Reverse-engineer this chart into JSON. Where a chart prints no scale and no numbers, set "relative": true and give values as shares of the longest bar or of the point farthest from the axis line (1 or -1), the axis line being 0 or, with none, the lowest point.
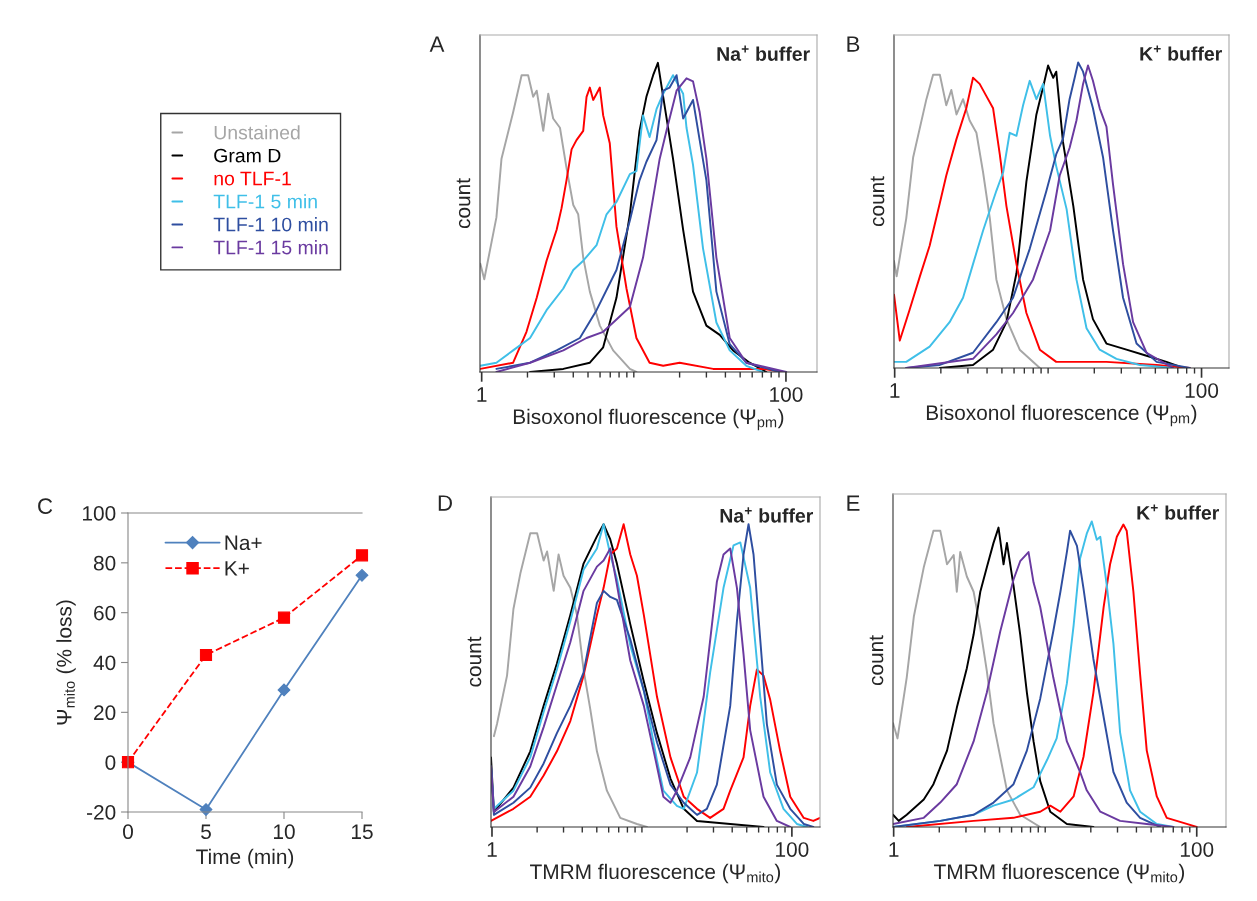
{
  "chart_data": [
    {
      "type": "line",
      "relative": true,
      "log": "x",
      "xlim": [
        0.975,
        160
      ],
      "xticks": [
        1,
        100
      ],
      "xlabel": "Bisoxonol fluorescence (Ψ$_{pm}$)",
      "ylabel": "count",
      "legend": "left",
      "annotations": [
        "A",
        "Na$^{+}$ buffer"
      ],
      "series": [
        {
          "name": "Unstained",
          "color": "#a6a6a6",
          "x": [
            0.98,
            1.04,
            1.25,
            1.35,
            1.61,
            1.83,
            2.02,
            2.18,
            2.3,
            2.54,
            2.74,
            2.95,
            3.27,
            3.61,
            4.0,
            4.31,
            4.65,
            5.14,
            5.98,
            7.31,
            9.42,
            10.4
          ],
          "values": [
            0.35,
            0.3,
            0.5,
            0.69,
            0.84,
            0.96,
            0.96,
            0.89,
            0.91,
            0.78,
            0.9,
            0.82,
            0.79,
            0.66,
            0.54,
            0.51,
            0.37,
            0.26,
            0.15,
            0.07,
            0.01,
            0
          ]
        },
        {
          "name": "Gram D",
          "color": "#000000",
          "x": [
            2.08,
            3.44,
            5.14,
            6.29,
            7.69,
            9.42,
            10.9,
            12.1,
            13.4,
            14.4,
            15.6,
            18.1,
            21.1,
            24.5,
            30.0,
            36.7,
            44.9,
            57.7,
            74.3
          ],
          "values": [
            0,
            0.01,
            0.03,
            0.08,
            0.24,
            0.51,
            0.78,
            0.89,
            0.96,
            1.0,
            0.89,
            0.69,
            0.46,
            0.26,
            0.15,
            0.12,
            0.07,
            0.03,
            0
          ]
        },
        {
          "name": "no TLF-1",
          "color": "#ff0000",
          "x": [
            0.98,
            1.61,
            1.97,
            2.3,
            2.67,
            3.11,
            3.35,
            3.61,
            3.9,
            4.2,
            4.65,
            4.89,
            5.14,
            5.41,
            5.69,
            5.98,
            6.29,
            6.95,
            7.69,
            8.95,
            10.4,
            12.7,
            15.6,
            20.0,
            33.2,
            70.6,
            95.5
          ],
          "values": [
            0.01,
            0.03,
            0.13,
            0.24,
            0.36,
            0.46,
            0.53,
            0.62,
            0.72,
            0.75,
            0.78,
            0.89,
            0.92,
            0.88,
            0.9,
            0.92,
            0.83,
            0.74,
            0.47,
            0.27,
            0.11,
            0.03,
            0.02,
            0.03,
            0.01,
            0.01,
            0
          ]
        },
        {
          "name": "TLF-1 5 min",
          "color": "#3fbfe8",
          "x": [
            0.98,
            1.25,
            1.61,
            2.08,
            2.67,
            3.44,
            4.0,
            4.65,
            5.69,
            6.62,
            7.69,
            9.42,
            10.4,
            11.5,
            12.7,
            14.1,
            15.6,
            18.1,
            21.1,
            22.2,
            24.5,
            28.5,
            34.9,
            42.7,
            54.9,
            70.6
          ],
          "values": [
            0.02,
            0.03,
            0.07,
            0.11,
            0.2,
            0.27,
            0.33,
            0.36,
            0.41,
            0.51,
            0.55,
            0.64,
            0.65,
            0.83,
            0.76,
            0.85,
            0.9,
            0.96,
            0.9,
            0.79,
            0.67,
            0.4,
            0.16,
            0.07,
            0.02,
            0
          ]
        },
        {
          "name": "TLF-1 10 min",
          "color": "#2e4ea0",
          "x": [
            1.25,
            2.08,
            3.11,
            4.42,
            5.69,
            7.69,
            9.42,
            10.9,
            12.1,
            14.1,
            15.6,
            17.2,
            19.1,
            21.1,
            24.5,
            27.1,
            30.0,
            34.9,
            42.7,
            54.9,
            90.8
          ],
          "values": [
            0.01,
            0.03,
            0.07,
            0.11,
            0.2,
            0.33,
            0.49,
            0.62,
            0.68,
            0.75,
            0.91,
            0.92,
            0.96,
            0.82,
            0.88,
            0.75,
            0.62,
            0.26,
            0.09,
            0.03,
            0
          ]
        },
        {
          "name": "TLF-1 15 min",
          "color": "#6a3aa0",
          "x": [
            1.25,
            2.08,
            3.44,
            4.89,
            6.29,
            7.69,
            9.42,
            11.5,
            14.8,
            16.4,
            19.1,
            22.2,
            24.5,
            27.1,
            30.0,
            34.9,
            42.7,
            54.9,
            100.5
          ],
          "values": [
            0,
            0.03,
            0.07,
            0.11,
            0.13,
            0.17,
            0.21,
            0.37,
            0.69,
            0.78,
            0.91,
            0.95,
            0.94,
            0.84,
            0.69,
            0.37,
            0.11,
            0.03,
            0
          ]
        }
      ]
    },
    {
      "type": "line",
      "relative": true,
      "log": "x",
      "xlim": [
        0.99,
        151
      ],
      "xticks": [
        1,
        100
      ],
      "xlabel": "Bisoxonol fluorescence (Ψ$_{pm}$)",
      "ylabel": "count",
      "annotations": [
        "B",
        "K$^{+}$ buffer"
      ],
      "series": [
        {
          "color": "#a6a6a6",
          "x": [
            0.99,
            1.03,
            1.19,
            1.32,
            1.61,
            1.78,
            1.97,
            2.17,
            2.34,
            2.53,
            2.79,
            3.08,
            3.41,
            3.77,
            4.17,
            4.6,
            5.35,
            6.53,
            8.83
          ],
          "values": [
            0.35,
            0.3,
            0.49,
            0.69,
            0.88,
            0.96,
            0.96,
            0.86,
            0.91,
            0.83,
            0.88,
            0.81,
            0.77,
            0.64,
            0.49,
            0.29,
            0.16,
            0.06,
            0
          ]
        },
        {
          "color": "#000000",
          "x": [
            1.97,
            3.24,
            4.38,
            5.35,
            6.22,
            7.22,
            8.39,
            9.28,
            10.0,
            10.8,
            11.3,
            12.5,
            14.6,
            16.9,
            19.6,
            24.0,
            32.4,
            43.8,
            59.1,
            75.9
          ],
          "values": [
            0,
            0.01,
            0.06,
            0.15,
            0.31,
            0.61,
            0.83,
            0.92,
            0.99,
            0.95,
            0.97,
            0.74,
            0.53,
            0.29,
            0.16,
            0.08,
            0.06,
            0.04,
            0.02,
            0
          ]
        },
        {
          "color": "#ff0000",
          "x": [
            0.99,
            1.08,
            1.25,
            1.46,
            1.69,
            1.97,
            2.17,
            2.53,
            2.93,
            3.24,
            3.58,
            3.96,
            4.38,
            4.84,
            5.35,
            6.22,
            7.22,
            8.83,
            11.3,
            24.0,
            50.9,
            83.9
          ],
          "values": [
            0.24,
            0.09,
            0.19,
            0.3,
            0.4,
            0.54,
            0.63,
            0.75,
            0.85,
            0.95,
            0.93,
            0.89,
            0.85,
            0.7,
            0.53,
            0.34,
            0.18,
            0.06,
            0.02,
            0.02,
            0.01,
            0
          ]
        },
        {
          "color": "#3fbfe8",
          "x": [
            0.99,
            1.19,
            1.69,
            2.28,
            2.79,
            3.24,
            3.77,
            4.6,
            5.09,
            5.62,
            6.22,
            6.87,
            7.59,
            8.39,
            9.28,
            10.3,
            11.3,
            13.2,
            15.3,
            17.8,
            21.7,
            27.9,
            39.6,
            65.3
          ],
          "values": [
            0.02,
            0.02,
            0.07,
            0.15,
            0.23,
            0.34,
            0.45,
            0.58,
            0.64,
            0.77,
            0.76,
            0.86,
            0.94,
            0.88,
            0.93,
            0.76,
            0.66,
            0.52,
            0.29,
            0.13,
            0.06,
            0.03,
            0.01,
            0
          ]
        },
        {
          "color": "#2e4ea0",
          "x": [
            1.19,
            1.97,
            3.24,
            4.6,
            5.91,
            7.59,
            9.75,
            11.3,
            12.5,
            13.8,
            14.9,
            15.7,
            16.9,
            19.6,
            22.8,
            26.5,
            30.8,
            37.7,
            50.9,
            83.9
          ],
          "values": [
            0,
            0.01,
            0.05,
            0.15,
            0.23,
            0.39,
            0.58,
            0.7,
            0.75,
            0.88,
            0.95,
            1.0,
            0.97,
            0.85,
            0.69,
            0.45,
            0.23,
            0.08,
            0.02,
            0
          ]
        },
        {
          "color": "#6a3aa0",
          "x": [
            1.19,
            3.24,
            4.6,
            5.91,
            7.98,
            10.3,
            11.9,
            13.8,
            15.3,
            16.9,
            18.2,
            19.6,
            21.7,
            24.0,
            26.5,
            30.8,
            35.8,
            43.8,
            65.3
          ],
          "values": [
            0,
            0.03,
            0.11,
            0.18,
            0.29,
            0.45,
            0.63,
            0.72,
            0.81,
            0.93,
            0.99,
            0.94,
            0.85,
            0.79,
            0.6,
            0.34,
            0.15,
            0.05,
            0
          ]
        }
      ]
    },
    {
      "type": "line",
      "x": [
        0,
        5,
        10,
        15
      ],
      "xlim": [
        0,
        15
      ],
      "xticks": [
        0,
        5,
        10,
        15
      ],
      "ylim": [
        -20,
        100
      ],
      "yticks": [
        -20,
        0,
        20,
        40,
        60,
        80,
        100
      ],
      "xlabel": "Time (min)",
      "ylabel": "Ψ$_{mito}$ (% loss)",
      "legend": "top left",
      "annotations": [
        "C"
      ],
      "series": [
        {
          "name": "Na+",
          "color": "#4f81bd",
          "marker": "diamond",
          "line_style": "solid",
          "values": [
            0,
            -19,
            29,
            75
          ]
        },
        {
          "name": "K+",
          "color": "#ff0000",
          "marker": "square",
          "line_style": "dashed",
          "values": [
            0,
            43,
            58,
            83
          ]
        }
      ]
    },
    {
      "type": "line",
      "relative": true,
      "log": "x",
      "xlim": [
        0.985,
        154
      ],
      "xticks": [
        1,
        100
      ],
      "xlabel": "TMRM fluorescence (Ψ$_{mito}$)",
      "ylabel": "count",
      "annotations": [
        "D",
        "Na$^{+}$ buffer"
      ],
      "series": [
        {
          "color": "#a6a6a6",
          "x": [
            1.03,
            1.08,
            1.26,
            1.39,
            1.55,
            1.8,
            2.0,
            2.21,
            2.33,
            2.58,
            2.78,
            3.0,
            3.33,
            3.69,
            4.08,
            4.52,
            5.01,
            5.84,
            7.17,
            9.26,
            10.8
          ],
          "values": [
            0.3,
            0.34,
            0.5,
            0.72,
            0.84,
            0.97,
            0.97,
            0.88,
            0.91,
            0.78,
            0.9,
            0.83,
            0.79,
            0.7,
            0.52,
            0.39,
            0.25,
            0.12,
            0.03,
            0.01,
            0
          ]
        },
        {
          "color": "#000000",
          "x": [
            0.985,
            1.03,
            1.39,
            1.8,
            2.21,
            2.71,
            3.33,
            4.08,
            5.01,
            5.55,
            6.15,
            6.81,
            8.36,
            10.3,
            12.6,
            15.5,
            19.0,
            23.3,
            38.8,
            64.7
          ],
          "values": [
            0.23,
            0.05,
            0.13,
            0.25,
            0.4,
            0.54,
            0.7,
            0.87,
            0.96,
            1.0,
            0.95,
            0.87,
            0.67,
            0.48,
            0.31,
            0.16,
            0.06,
            0.02,
            0.01,
            0
          ]
        },
        {
          "color": "#ff0000",
          "x": [
            0.985,
            1.39,
            1.8,
            2.21,
            2.71,
            3.33,
            4.08,
            5.01,
            5.55,
            6.15,
            6.81,
            7.55,
            8.36,
            9.26,
            10.3,
            12.6,
            15.5,
            19.0,
            23.3,
            28.5,
            35.0,
            38.8,
            47.6,
            52.7,
            58.4,
            64.7,
            71.7,
            83.6,
            97.5,
            120,
            139,
            154
          ],
          "values": [
            0.02,
            0.06,
            0.1,
            0.17,
            0.25,
            0.35,
            0.5,
            0.7,
            0.79,
            0.9,
            0.92,
            1.0,
            0.9,
            0.83,
            0.7,
            0.43,
            0.23,
            0.1,
            0.06,
            0.03,
            0.06,
            0.12,
            0.23,
            0.4,
            0.52,
            0.5,
            0.42,
            0.25,
            0.1,
            0.03,
            0.02,
            0.03
          ]
        },
        {
          "color": "#3fbfe8",
          "x": [
            0.985,
            1.03,
            1.39,
            1.8,
            2.21,
            2.71,
            3.33,
            4.08,
            5.01,
            5.55,
            6.15,
            6.81,
            8.36,
            10.3,
            12.6,
            13.9,
            17.1,
            19.0,
            23.3,
            28.5,
            35.0,
            40.8,
            45.3,
            52.7,
            61.5,
            71.7,
            87.9,
            108,
            126
          ],
          "values": [
            0.2,
            0.06,
            0.12,
            0.23,
            0.38,
            0.52,
            0.68,
            0.85,
            0.92,
            1.0,
            0.9,
            0.82,
            0.6,
            0.45,
            0.22,
            0.12,
            0.07,
            0.06,
            0.18,
            0.51,
            0.79,
            0.93,
            0.94,
            0.79,
            0.43,
            0.18,
            0.06,
            0.01,
            0
          ]
        },
        {
          "color": "#2e4ea0",
          "x": [
            0.985,
            1.03,
            1.39,
            1.8,
            2.21,
            2.71,
            3.33,
            4.08,
            5.01,
            5.55,
            6.15,
            6.81,
            8.36,
            10.3,
            12.6,
            15.5,
            19.0,
            21.0,
            23.3,
            27.1,
            31.6,
            38.8,
            43.0,
            47.6,
            51.4,
            55.5,
            61.5,
            68.1,
            79.4,
            97.5,
            120,
            139
          ],
          "values": [
            0.2,
            0.04,
            0.08,
            0.13,
            0.21,
            0.31,
            0.4,
            0.51,
            0.74,
            0.78,
            0.76,
            0.75,
            0.62,
            0.45,
            0.28,
            0.14,
            0.08,
            0.06,
            0.04,
            0.06,
            0.14,
            0.4,
            0.68,
            0.9,
            1.0,
            0.9,
            0.62,
            0.34,
            0.14,
            0.06,
            0.01,
            0
          ]
        },
        {
          "color": "#6a3aa0",
          "x": [
            0.985,
            1.03,
            1.39,
            1.8,
            2.21,
            2.71,
            3.33,
            4.08,
            5.01,
            5.55,
            6.15,
            6.81,
            8.36,
            10.3,
            12.6,
            13.9,
            15.5,
            17.1,
            21.0,
            25.8,
            31.6,
            35.0,
            38.8,
            43.0,
            47.6,
            52.7,
            64.7,
            79.4,
            97.5
          ],
          "values": [
            0.2,
            0.05,
            0.1,
            0.2,
            0.33,
            0.47,
            0.61,
            0.78,
            0.86,
            0.88,
            0.92,
            0.8,
            0.55,
            0.4,
            0.2,
            0.1,
            0.08,
            0.12,
            0.23,
            0.43,
            0.81,
            0.9,
            0.92,
            0.79,
            0.57,
            0.32,
            0.1,
            0.02,
            0
          ]
        }
      ]
    },
    {
      "type": "line",
      "relative": true,
      "log": "x",
      "xlim": [
        0.99,
        156
      ],
      "xticks": [
        1,
        100
      ],
      "xlabel": "TMRM fluorescence (Ψ$_{mito}$)",
      "ylabel": "count",
      "annotations": [
        "E",
        "K$^{+}$ buffer"
      ],
      "series": [
        {
          "color": "#a6a6a6",
          "x": [
            0.99,
            1.06,
            1.22,
            1.36,
            1.58,
            1.83,
            2.03,
            2.25,
            2.49,
            2.61,
            2.75,
            3.04,
            3.37,
            3.73,
            4.12,
            4.56,
            5.05,
            5.59,
            6.84,
            9.27
          ],
          "values": [
            0.34,
            0.29,
            0.49,
            0.69,
            0.85,
            0.97,
            0.97,
            0.86,
            0.89,
            0.77,
            0.9,
            0.82,
            0.77,
            0.65,
            0.51,
            0.34,
            0.23,
            0.12,
            0.04,
            0
          ]
        },
        {
          "color": "#000000",
          "x": [
            0.99,
            1.08,
            1.22,
            1.58,
            1.83,
            2.25,
            2.61,
            3.04,
            3.37,
            3.73,
            4.12,
            4.56,
            4.92,
            5.31,
            5.59,
            6.18,
            6.84,
            7.57,
            8.38,
            9.27,
            10.8,
            13.9,
            20.8
          ],
          "values": [
            0.04,
            0.02,
            0.04,
            0.09,
            0.14,
            0.25,
            0.39,
            0.52,
            0.63,
            0.77,
            0.85,
            0.93,
            0.98,
            0.86,
            0.93,
            0.79,
            0.63,
            0.44,
            0.28,
            0.15,
            0.05,
            0.01,
            0
          ]
        },
        {
          "color": "#ff0000",
          "x": [
            1.22,
            3.37,
            6.18,
            9.27,
            10.8,
            12.6,
            15.4,
            17.9,
            20.8,
            24.3,
            26.8,
            29.7,
            32.8,
            34.5,
            38.2,
            42.3,
            46.8,
            54.5,
            63.4,
            85.9,
            100
          ],
          "values": [
            0,
            0.02,
            0.03,
            0.05,
            0.07,
            0.05,
            0.1,
            0.23,
            0.44,
            0.72,
            0.86,
            0.95,
            0.99,
            0.97,
            0.77,
            0.5,
            0.25,
            0.1,
            0.03,
            0.01,
            0
          ]
        },
        {
          "color": "#3fbfe8",
          "x": [
            0.99,
            2.03,
            3.37,
            4.56,
            6.18,
            8.38,
            10.3,
            11.9,
            13.9,
            15.4,
            17.0,
            18.8,
            20.3,
            21.9,
            23.1,
            25.5,
            28.2,
            31.2,
            36.3,
            42.3,
            54.5,
            70.2
          ],
          "values": [
            0,
            0.02,
            0.04,
            0.07,
            0.09,
            0.13,
            0.22,
            0.29,
            0.47,
            0.66,
            0.88,
            0.96,
            1.0,
            0.94,
            0.95,
            0.79,
            0.6,
            0.31,
            0.12,
            0.05,
            0.01,
            0
          ]
        },
        {
          "color": "#2e4ea0",
          "x": [
            0.99,
            2.03,
            3.37,
            4.56,
            6.18,
            7.57,
            9.27,
            11.3,
            12.6,
            13.9,
            14.6,
            16.2,
            17.9,
            20.8,
            24.3,
            28.2,
            34.5,
            42.3,
            57.3
          ],
          "values": [
            0,
            0.02,
            0.04,
            0.08,
            0.14,
            0.25,
            0.42,
            0.64,
            0.77,
            0.9,
            0.97,
            0.92,
            0.78,
            0.55,
            0.36,
            0.18,
            0.08,
            0.03,
            0
          ]
        },
        {
          "color": "#6a3aa0",
          "x": [
            0.99,
            1.58,
            2.03,
            2.61,
            3.37,
            4.12,
            5.05,
            6.18,
            6.84,
            7.76,
            8.38,
            9.27,
            11.3,
            13.9,
            17.0,
            18.8,
            23.1,
            31.2,
            46.8,
            70.2
          ],
          "values": [
            0.01,
            0.03,
            0.08,
            0.14,
            0.28,
            0.44,
            0.64,
            0.81,
            0.87,
            0.9,
            0.8,
            0.72,
            0.49,
            0.28,
            0.18,
            0.12,
            0.05,
            0.02,
            0.01,
            0
          ]
        }
      ]
    }
  ]
}
